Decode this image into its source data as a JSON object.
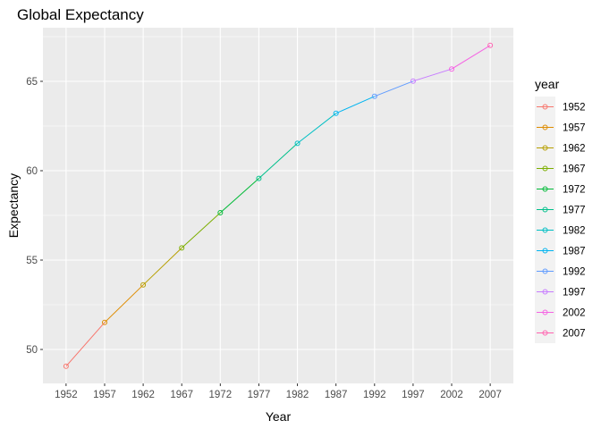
{
  "chart_data": {
    "type": "line",
    "title": "Global Expectancy",
    "xlabel": "Year",
    "ylabel": "Expectancy",
    "x": [
      "1952",
      "1957",
      "1962",
      "1967",
      "1972",
      "1977",
      "1982",
      "1987",
      "1992",
      "1997",
      "2002",
      "2007"
    ],
    "values": [
      49.06,
      51.51,
      53.61,
      55.68,
      57.65,
      59.57,
      61.53,
      63.21,
      64.16,
      65.01,
      65.69,
      67.01
    ],
    "ylim": [
      48.1,
      68.0
    ],
    "yticks": [
      50,
      55,
      60,
      65
    ],
    "grid": true,
    "legend": {
      "title": "year",
      "position": "right",
      "entries": [
        "1952",
        "1957",
        "1962",
        "1967",
        "1972",
        "1977",
        "1982",
        "1987",
        "1992",
        "1997",
        "2002",
        "2007"
      ]
    },
    "colors": [
      "#F8766D",
      "#DE8C00",
      "#B79F00",
      "#7CAE00",
      "#00BA38",
      "#00C08B",
      "#00BFC4",
      "#00B4F0",
      "#619CFF",
      "#C77CFF",
      "#F564E3",
      "#FF64B0"
    ],
    "panel_background": "#EBEBEB",
    "grid_color": "#FFFFFF"
  }
}
